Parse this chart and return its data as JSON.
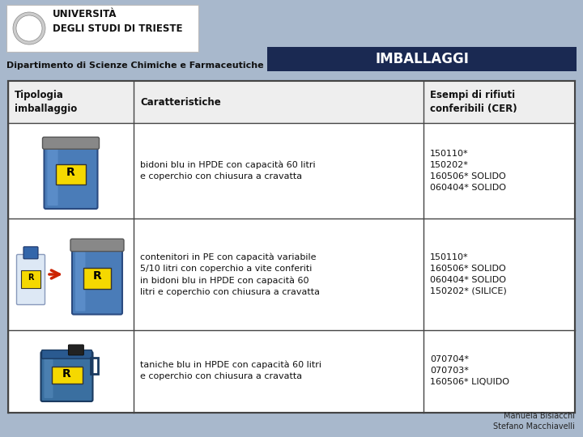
{
  "bg_color": "#a8b8cc",
  "header_bg": "#1a2952",
  "header_text": "IMBALLAGGI",
  "header_text_color": "#ffffff",
  "dept_text": "Dipartimento di Scienze Chimiche e Farmaceutiche",
  "table_border_color": "#444444",
  "col1_header": "Tipologia\nimballaggio",
  "col2_header": "Caratteristiche",
  "col3_header": "Esempi di rifiuti\nconferibili (CER)",
  "rows": [
    {
      "caratteristiche": "bidoni blu in HPDE con capacità 60 litri\ne coperchio con chiusura a cravatta",
      "esempi": "150110*\n150202*\n160506* SOLIDO\n060404* SOLIDO"
    },
    {
      "caratteristiche": "contenitori in PE con capacità variabile\n5/10 litri con coperchio a vite conferiti\nin bidoni blu in HPDE con capacità 60\nlitri e coperchio con chiusura a cravatta",
      "esempi": "150110*\n160506* SOLIDO\n060404* SOLIDO\n150202* (SILICE)"
    },
    {
      "caratteristiche": "taniche blu in HPDE con capacità 60 litri\ne coperchio con chiusura a cravatta",
      "esempi": "070704*\n070703*\n160506* LIQUIDO"
    }
  ],
  "footer_text": "Manuela Bisiacchi\nStefano Macchiavelli",
  "title_fontsize": 12,
  "dept_fontsize": 8,
  "col_header_fontsize": 8.5,
  "cell_fontsize": 8,
  "footer_fontsize": 7
}
